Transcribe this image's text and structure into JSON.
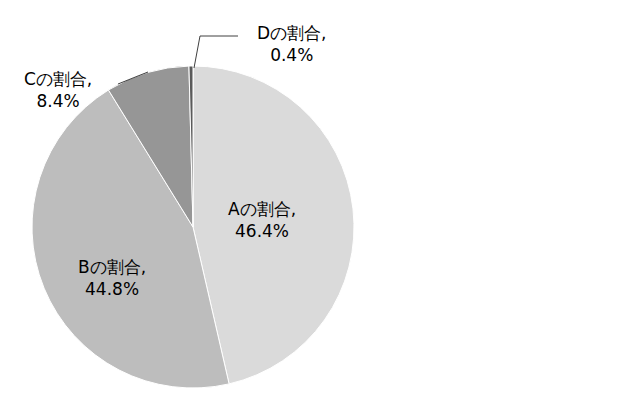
{
  "chart_data": {
    "type": "pie",
    "categories": [
      "Aの割合",
      "Bの割合",
      "Cの割合",
      "Dの割合"
    ],
    "values": [
      46.4,
      44.8,
      8.4,
      0.4
    ],
    "value_labels": [
      "Aの割合, 46.4%",
      "Bの割合, 44.8%",
      "Cの割合, 8.4%",
      "Dの割合, 0.4%"
    ],
    "colors": [
      "#dadada",
      "#bdbdbd",
      "#969696",
      "#5a5a5a"
    ],
    "data_labels": true
  }
}
